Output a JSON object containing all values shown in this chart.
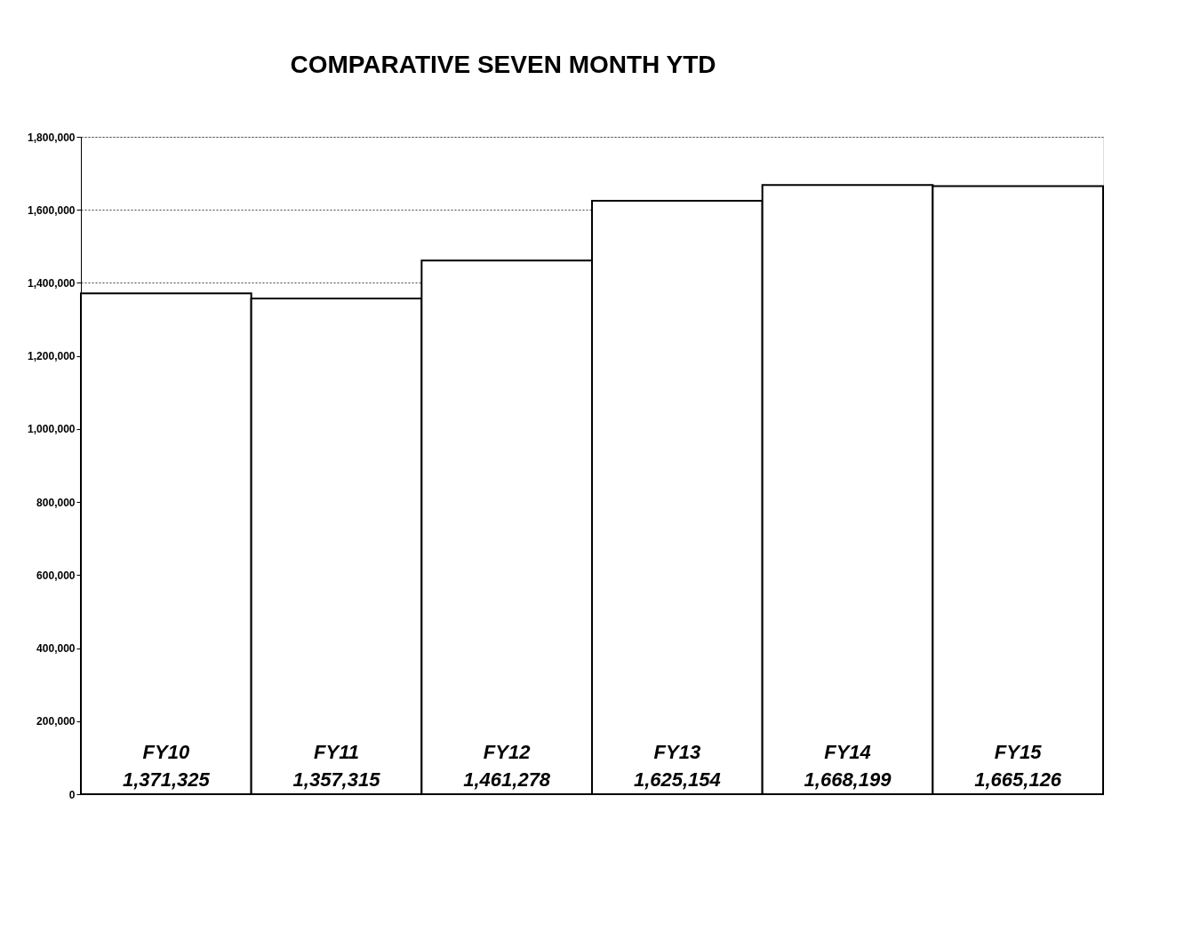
{
  "chart_data": {
    "type": "bar",
    "title": "COMPARATIVE SEVEN MONTH YTD",
    "categories": [
      "FY10",
      "FY11",
      "FY12",
      "FY13",
      "FY14",
      "FY15"
    ],
    "values": [
      1371325,
      1357315,
      1461278,
      1625154,
      1668199,
      1665126
    ],
    "value_labels": [
      "1,371,325",
      "1,357,315",
      "1,461,278",
      "1,625,154",
      "1,668,199",
      "1,665,126"
    ],
    "color": "#ffffff",
    "ylim": [
      0,
      1800000
    ],
    "yticks": [
      0,
      {
        "value": 200000,
        "label": "200,000"
      },
      {
        "value": 400000,
        "label": "400,000"
      },
      {
        "value": 600000,
        "label": "600,000"
      },
      {
        "value": 800000,
        "label": "800,000"
      },
      {
        "value": 1000000,
        "label": "1,000,000"
      },
      {
        "value": 1200000,
        "label": "1,200,000"
      },
      {
        "value": 1400000,
        "label": "1,400,000"
      },
      {
        "value": 1600000,
        "label": "1,600,000"
      },
      {
        "value": 1800000,
        "label": "1,800,000"
      }
    ],
    "grid": "y"
  }
}
